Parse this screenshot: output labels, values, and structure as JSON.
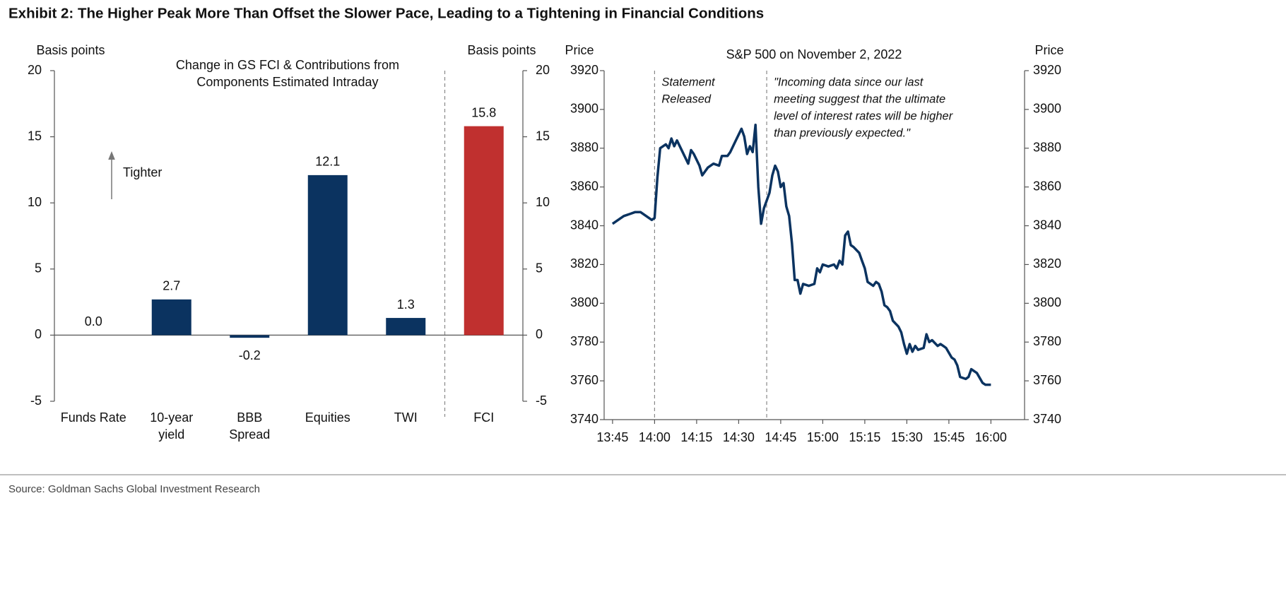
{
  "title": "Exhibit 2: The Higher Peak More Than Offset the Slower Pace, Leading to a Tightening in Financial Conditions",
  "source": "Source: Goldman Sachs Global Investment Research",
  "chart_data": [
    {
      "type": "bar",
      "title": [
        "Change in GS FCI & Contributions from",
        "Components  Estimated Intraday"
      ],
      "ylabel": "Basis points",
      "y2label": "Basis points",
      "categories": [
        [
          "Funds Rate"
        ],
        [
          "10-year",
          "yield"
        ],
        [
          "BBB",
          "Spread"
        ],
        [
          "Equities"
        ],
        [
          "TWI"
        ],
        [
          "FCI"
        ]
      ],
      "values": [
        0.0,
        2.7,
        -0.2,
        12.1,
        1.3,
        15.8
      ],
      "value_labels": [
        "0.0",
        "2.7",
        "-0.2",
        "12.1",
        "1.3",
        "15.8"
      ],
      "colors": [
        "#0b3360",
        "#0b3360",
        "#0b3360",
        "#0b3360",
        "#0b3360",
        "#c0302f"
      ],
      "ylim": [
        -5,
        20
      ],
      "yticks": [
        -5,
        0,
        5,
        10,
        15,
        20
      ],
      "y2lim": [
        -5,
        20
      ],
      "y2ticks": [
        -5,
        0,
        5,
        10,
        15,
        20
      ],
      "annotation": "Tighter"
    },
    {
      "type": "line",
      "title": "S&P 500 on November 2, 2022",
      "ylabel": "Price",
      "y2label": "Price",
      "color": "#0b3360",
      "x": [
        "13:45",
        "13:47",
        "13:49",
        "13:51",
        "13:53",
        "13:55",
        "13:57",
        "13:59",
        "14:00",
        "14:01",
        "14:02",
        "14:04",
        "14:05",
        "14:06",
        "14:07",
        "14:08",
        "14:10",
        "14:12",
        "14:13",
        "14:14",
        "14:16",
        "14:17",
        "14:19",
        "14:21",
        "14:23",
        "14:24",
        "14:26",
        "14:27",
        "14:29",
        "14:31",
        "14:32",
        "14:33",
        "14:34",
        "14:35",
        "14:36",
        "14:37",
        "14:38",
        "14:39",
        "14:40",
        "14:41",
        "14:42",
        "14:43",
        "14:44",
        "14:45",
        "14:46",
        "14:47",
        "14:48",
        "14:49",
        "14:50",
        "14:51",
        "14:52",
        "14:53",
        "14:55",
        "14:57",
        "14:58",
        "14:59",
        "15:00",
        "15:02",
        "15:04",
        "15:05",
        "15:06",
        "15:07",
        "15:08",
        "15:09",
        "15:10",
        "15:11",
        "15:13",
        "15:14",
        "15:15",
        "15:16",
        "15:18",
        "15:19",
        "15:20",
        "15:21",
        "15:22",
        "15:23",
        "15:24",
        "15:25",
        "15:27",
        "15:28",
        "15:29",
        "15:30",
        "15:31",
        "15:32",
        "15:33",
        "15:34",
        "15:36",
        "15:37",
        "15:38",
        "15:39",
        "15:41",
        "15:42",
        "15:43",
        "15:44",
        "15:46",
        "15:47",
        "15:48",
        "15:49",
        "15:51",
        "15:52",
        "15:53",
        "15:55",
        "15:57",
        "15:58",
        "16:00"
      ],
      "values": [
        3841,
        3843,
        3845,
        3846,
        3847,
        3847,
        3845,
        3843,
        3844,
        3865,
        3880,
        3882,
        3880,
        3885,
        3881,
        3884,
        3878,
        3872,
        3879,
        3877,
        3871,
        3866,
        3870,
        3872,
        3871,
        3876,
        3876,
        3878,
        3884,
        3890,
        3886,
        3877,
        3881,
        3878,
        3892,
        3860,
        3841,
        3849,
        3853,
        3857,
        3866,
        3871,
        3868,
        3860,
        3862,
        3850,
        3845,
        3831,
        3812,
        3812,
        3805,
        3810,
        3809,
        3810,
        3818,
        3816,
        3820,
        3819,
        3820,
        3818,
        3822,
        3820,
        3835,
        3837,
        3830,
        3829,
        3826,
        3822,
        3818,
        3811,
        3809,
        3811,
        3810,
        3806,
        3799,
        3798,
        3796,
        3791,
        3788,
        3785,
        3779,
        3774,
        3779,
        3775,
        3778,
        3776,
        3777,
        3784,
        3780,
        3781,
        3778,
        3779,
        3778,
        3777,
        3772,
        3771,
        3768,
        3762,
        3761,
        3762,
        3766,
        3764,
        3759,
        3758,
        3758
      ],
      "xlim": [
        "13:42",
        "16:12"
      ],
      "xticks": [
        "13:45",
        "14:00",
        "14:15",
        "14:30",
        "14:45",
        "15:00",
        "15:15",
        "15:30",
        "15:45",
        "16:00"
      ],
      "ylim": [
        3740,
        3920
      ],
      "yticks": [
        3740,
        3760,
        3780,
        3800,
        3820,
        3840,
        3860,
        3880,
        3900,
        3920
      ],
      "y2lim": [
        3740,
        3920
      ],
      "y2ticks": [
        3740,
        3760,
        3780,
        3800,
        3820,
        3840,
        3860,
        3880,
        3900,
        3920
      ],
      "annotations": [
        {
          "x": "14:00",
          "lines": [
            "Statement",
            "Released"
          ]
        },
        {
          "x": "14:40",
          "lines": [
            "\"Incoming data since our last",
            "meeting suggest that the ultimate",
            "level of interest rates will be higher",
            "than previously expected.\""
          ]
        }
      ]
    }
  ]
}
